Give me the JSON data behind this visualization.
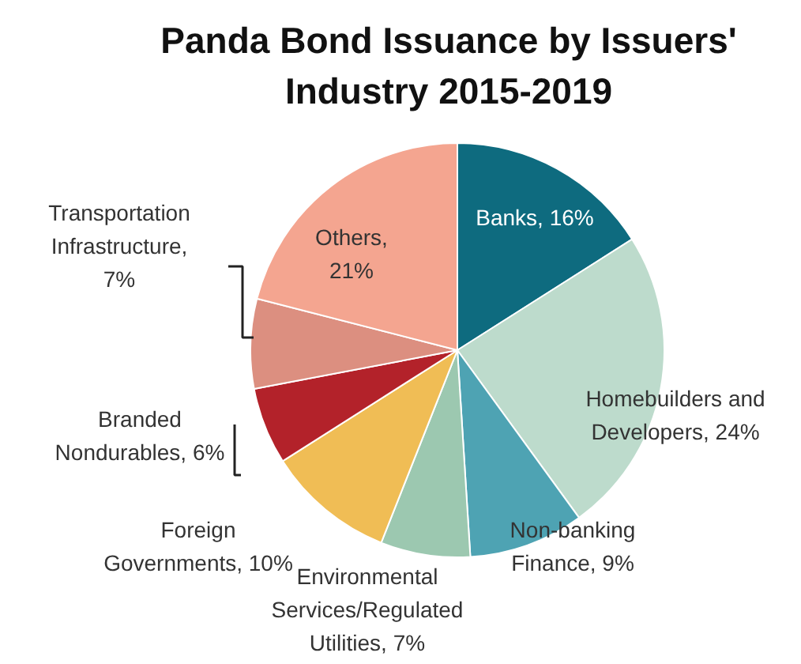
{
  "chart_data": {
    "type": "pie",
    "title": "Panda Bond Issuance by Issuers' Industry 2015-2019",
    "categories": [
      "Banks, 16%",
      "Homebuilders and Developers, 24%",
      "Non-banking Finance, 9%",
      "Environmental Services/Regulated Utilities, 7%",
      "Foreign Governments, 10%",
      "Branded Nondurables, 6%",
      "Transportation Infrastructure, 7%",
      "Others, 21%"
    ],
    "values": [
      16,
      24,
      9,
      7,
      10,
      6,
      7,
      21
    ],
    "colors": [
      "#0e6b7f",
      "#bddbcc",
      "#4ea3b3",
      "#9cc8b0",
      "#f0bd55",
      "#b3222a",
      "#dc8f80",
      "#f4a590"
    ]
  }
}
